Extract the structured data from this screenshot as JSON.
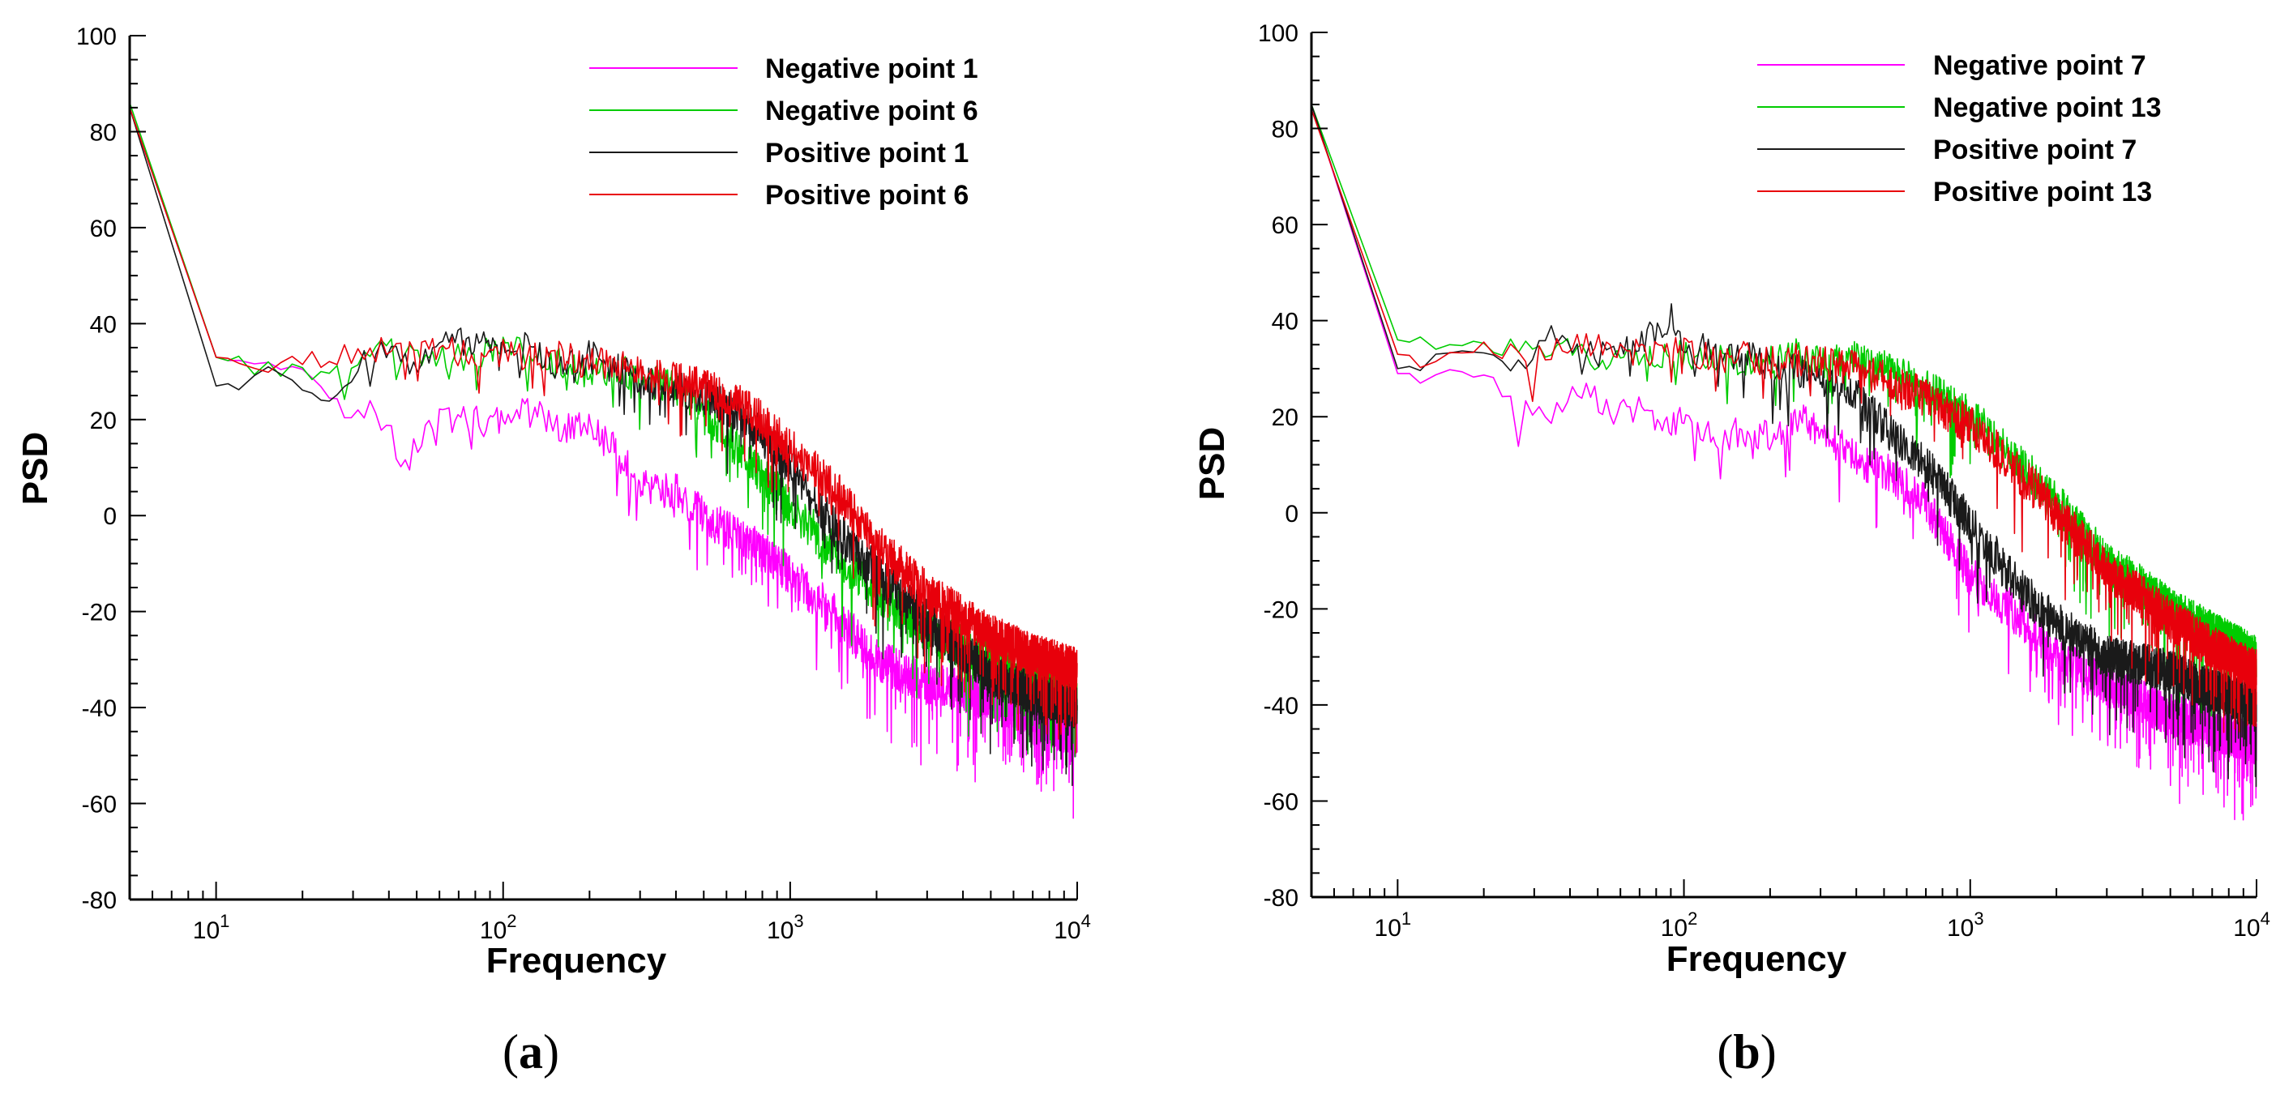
{
  "chart_data": [
    {
      "type": "line",
      "panel_label": "a",
      "title": "",
      "xlabel": "Frequency",
      "ylabel": "PSD",
      "xscale": "log",
      "xlim": [
        5,
        10000
      ],
      "ylim": [
        -80,
        100
      ],
      "ytick_values": [
        -80,
        -60,
        -40,
        -20,
        0,
        20,
        40,
        60,
        80,
        100
      ],
      "ytick_labels": [
        "-80",
        "-60",
        "-40",
        "-20",
        "0",
        "20",
        "40",
        "60",
        "80",
        "100"
      ],
      "xtick_labels": [
        {
          "value": 10,
          "base": "10",
          "exp": "1"
        },
        {
          "value": 100,
          "base": "10",
          "exp": "2"
        },
        {
          "value": 1000,
          "base": "10",
          "exp": "3"
        },
        {
          "value": 10000,
          "base": "10",
          "exp": "4"
        }
      ],
      "legend_position": "top-right",
      "series": [
        {
          "name": "Negative point 1",
          "color": "#ff00ff",
          "x": [
            5,
            10,
            15,
            20,
            25,
            30,
            35,
            45,
            55,
            70,
            90,
            100,
            130,
            160,
            200,
            260,
            300,
            400,
            500,
            700,
            1000,
            1500,
            2000,
            3000,
            5000,
            7000,
            10000
          ],
          "y": [
            85,
            33,
            30,
            29,
            26,
            18,
            24,
            11,
            19,
            21,
            19,
            20,
            22,
            18,
            19,
            12,
            6,
            5,
            0,
            -5,
            -12,
            -22,
            -30,
            -35,
            -38,
            -42,
            -46
          ]
        },
        {
          "name": "Negative point 6",
          "color": "#00cc00",
          "x": [
            5,
            10,
            15,
            20,
            30,
            40,
            50,
            70,
            100,
            130,
            170,
            200,
            260,
            300,
            400,
            500,
            700,
            1000,
            1500,
            2000,
            3000,
            5000,
            7000,
            10000
          ],
          "y": [
            86,
            33,
            30,
            30,
            32,
            35,
            32,
            33,
            35,
            33,
            31,
            30,
            31,
            28,
            27,
            22,
            12,
            2,
            -9,
            -16,
            -24,
            -30,
            -34,
            -37
          ]
        },
        {
          "name": "Positive point 1",
          "color": "#1a1a1a",
          "x": [
            5,
            10,
            15,
            20,
            25,
            30,
            35,
            40,
            50,
            60,
            70,
            80,
            100,
            130,
            150,
            200,
            260,
            300,
            400,
            500,
            700,
            1000,
            1500,
            2000,
            3000,
            5000,
            7000,
            10000
          ],
          "y": [
            85,
            27,
            29,
            26,
            25,
            29,
            35,
            34,
            31,
            36,
            39,
            35,
            37,
            34,
            31,
            33,
            30,
            28,
            26,
            25,
            20,
            10,
            -4,
            -12,
            -22,
            -33,
            -37,
            -40
          ]
        },
        {
          "name": "Positive point 6",
          "color": "#e8000b",
          "x": [
            5,
            10,
            15,
            20,
            30,
            40,
            50,
            60,
            70,
            100,
            130,
            160,
            200,
            260,
            300,
            400,
            500,
            700,
            1000,
            1500,
            2000,
            3000,
            5000,
            7000,
            10000
          ],
          "y": [
            85,
            33,
            32,
            32,
            34,
            35,
            34,
            35,
            34,
            34,
            33,
            33,
            32,
            31,
            30,
            28,
            27,
            23,
            14,
            4,
            -6,
            -16,
            -25,
            -29,
            -32
          ]
        }
      ]
    },
    {
      "type": "line",
      "panel_label": "b",
      "title": "",
      "xlabel": "Frequency",
      "ylabel": "PSD",
      "xscale": "log",
      "xlim": [
        5,
        10000
      ],
      "ylim": [
        -80,
        100
      ],
      "ytick_values": [
        -80,
        -60,
        -40,
        -20,
        0,
        20,
        40,
        60,
        80,
        100
      ],
      "ytick_labels": [
        "-80",
        "-60",
        "-40",
        "-20",
        "0",
        "20",
        "40",
        "60",
        "80",
        "100"
      ],
      "xtick_labels": [
        {
          "value": 10,
          "base": "10",
          "exp": "1"
        },
        {
          "value": 100,
          "base": "10",
          "exp": "2"
        },
        {
          "value": 1000,
          "base": "10",
          "exp": "3"
        },
        {
          "value": 10000,
          "base": "10",
          "exp": "4"
        }
      ],
      "legend_position": "top-right",
      "series": [
        {
          "name": "Negative point 7",
          "color": "#ff00ff",
          "x": [
            5,
            10,
            15,
            20,
            25,
            30,
            35,
            40,
            45,
            55,
            70,
            90,
            100,
            130,
            160,
            200,
            260,
            300,
            400,
            500,
            700,
            1000,
            1500,
            2000,
            3000,
            5000,
            7000,
            10000
          ],
          "y": [
            85,
            29,
            29,
            29,
            24,
            20,
            20,
            24,
            27,
            20,
            22,
            18,
            21,
            15,
            17,
            16,
            20,
            17,
            11,
            9,
            2,
            -13,
            -22,
            -30,
            -36,
            -42,
            -45,
            -48
          ]
        },
        {
          "name": "Negative point 13",
          "color": "#00cc00",
          "x": [
            5,
            10,
            15,
            20,
            30,
            40,
            50,
            70,
            100,
            130,
            170,
            200,
            260,
            300,
            400,
            500,
            700,
            1000,
            1500,
            2000,
            3000,
            5000,
            7000,
            10000
          ],
          "y": [
            85,
            36,
            34,
            35,
            33,
            34,
            31,
            32,
            33,
            33,
            31,
            32,
            33,
            31,
            32,
            30,
            26,
            20,
            10,
            2,
            -10,
            -20,
            -25,
            -30
          ]
        },
        {
          "name": "Positive point 7",
          "color": "#1a1a1a",
          "x": [
            5,
            10,
            15,
            20,
            25,
            30,
            35,
            40,
            50,
            60,
            70,
            80,
            90,
            100,
            130,
            150,
            200,
            260,
            300,
            400,
            500,
            700,
            1000,
            1500,
            2000,
            3000,
            5000,
            7000,
            10000
          ],
          "y": [
            85,
            30,
            32,
            34,
            30,
            33,
            37,
            35,
            33,
            34,
            36,
            38,
            41,
            36,
            34,
            33,
            31,
            29,
            28,
            25,
            18,
            10,
            -2,
            -16,
            -23,
            -30,
            -33,
            -37,
            -40
          ]
        },
        {
          "name": "Positive point 13",
          "color": "#e8000b",
          "x": [
            5,
            10,
            15,
            20,
            30,
            40,
            50,
            60,
            70,
            100,
            130,
            160,
            200,
            260,
            300,
            400,
            500,
            700,
            1000,
            1500,
            2000,
            3000,
            5000,
            7000,
            10000
          ],
          "y": [
            84,
            33,
            32,
            34,
            33,
            35,
            35,
            34,
            33,
            34,
            32,
            33,
            31,
            32,
            31,
            30,
            28,
            24,
            18,
            8,
            0,
            -12,
            -22,
            -28,
            -33
          ]
        }
      ]
    }
  ]
}
